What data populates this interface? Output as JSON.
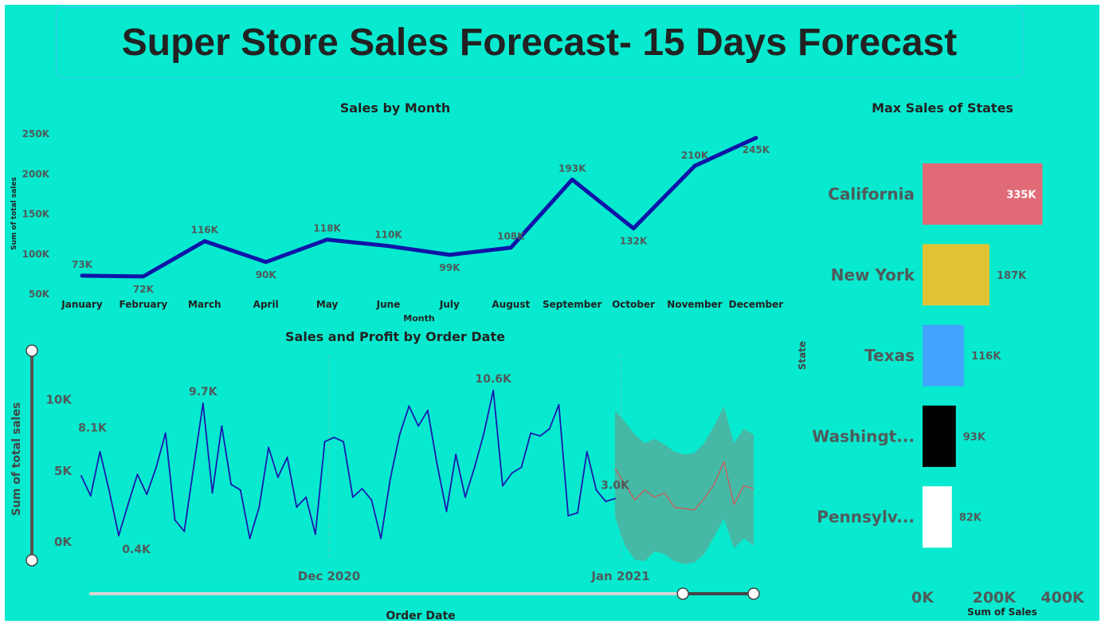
{
  "dashboard_title": "Super Store Sales Forecast- 15 Days Forecast",
  "colors": {
    "background": "#07eacf",
    "line_primary": "#0f14a8",
    "line_daily": "#1a1ab0",
    "forecast_line": "#d9534f",
    "forecast_band": "#45b9a6",
    "label_text": "#505a5a",
    "title_text": "#222222"
  },
  "chart_data": [
    {
      "id": "sales-by-month",
      "type": "line",
      "title": "Sales by Month",
      "xlabel": "Month",
      "ylabel": "Sum of total sales",
      "categories": [
        "January",
        "February",
        "March",
        "April",
        "May",
        "June",
        "July",
        "August",
        "September",
        "October",
        "November",
        "December"
      ],
      "values": [
        73,
        72,
        116,
        90,
        118,
        110,
        99,
        108,
        193,
        132,
        210,
        245
      ],
      "value_labels": [
        "73K",
        "72K",
        "116K",
        "90K",
        "118K",
        "110K",
        "99K",
        "108K",
        "193K",
        "132K",
        "210K",
        "245K"
      ],
      "yticks": [
        50,
        100,
        150,
        200,
        250
      ],
      "ytick_labels": [
        "50K",
        "100K",
        "150K",
        "200K",
        "250K"
      ],
      "ylim": [
        50,
        250
      ],
      "grid": false
    },
    {
      "id": "sales-profit-by-date",
      "type": "line",
      "title": "Sales and Profit by Order Date",
      "xlabel": "Order Date",
      "ylabel": "Sum of total sales",
      "x_tick_labels": [
        "Dec 2020",
        "Jan 2021"
      ],
      "ytick_labels": [
        "0K",
        "5K",
        "10K"
      ],
      "yticks": [
        0,
        5,
        10
      ],
      "ylim": [
        -1.5,
        12.5
      ],
      "values": [
        4.6,
        3.2,
        6.3,
        3.5,
        0.4,
        2.6,
        4.7,
        3.3,
        5.2,
        7.6,
        1.5,
        0.7,
        5.2,
        9.7,
        3.4,
        8.1,
        4.0,
        3.6,
        0.2,
        2.4,
        6.6,
        4.5,
        5.9,
        2.4,
        3.1,
        0.5,
        7.0,
        7.3,
        7.0,
        3.1,
        3.7,
        2.9,
        0.2,
        4.4,
        7.5,
        9.5,
        8.1,
        9.2,
        5.4,
        2.1,
        6.1,
        3.1,
        5.2,
        7.6,
        10.6,
        3.9,
        4.8,
        5.2,
        7.6,
        7.4,
        7.9,
        9.6,
        1.8,
        2.0,
        6.3,
        3.6,
        2.8,
        3.0
      ],
      "value_labels": [
        {
          "index": 4,
          "text": "0.4K"
        },
        {
          "index": 13,
          "text": "9.7K"
        },
        {
          "index": 44,
          "text": "10.6K"
        },
        {
          "index": 57,
          "text": "3.0K"
        }
      ],
      "extra_labels": [
        {
          "text": "8.1K",
          "value": 8.1
        }
      ],
      "forecast": {
        "values": [
          5.1,
          4.0,
          2.9,
          3.6,
          3.1,
          3.4,
          2.4,
          2.3,
          2.2,
          3.0,
          4.0,
          5.6,
          2.6,
          3.9,
          3.7
        ],
        "upper": [
          9.2,
          8.4,
          7.5,
          6.9,
          7.2,
          6.8,
          6.3,
          6.1,
          6.2,
          6.9,
          8.1,
          9.5,
          6.9,
          7.9,
          7.5
        ],
        "lower": [
          1.7,
          -0.3,
          -1.3,
          -1.4,
          -0.7,
          -0.9,
          -1.4,
          -1.6,
          -1.5,
          -0.9,
          0.3,
          1.6,
          -0.5,
          0.2,
          -0.3
        ]
      },
      "slider": {
        "range": [
          0.88,
          1.0
        ]
      }
    },
    {
      "id": "max-sales-states",
      "type": "bar",
      "orientation": "horizontal",
      "title": "Max Sales of States",
      "xlabel": "Sum of Sales",
      "ylabel": "State",
      "categories": [
        "California",
        "New York",
        "Texas",
        "Washingt...",
        "Pennsylv..."
      ],
      "values": [
        335,
        187,
        116,
        93,
        82
      ],
      "value_labels": [
        "335K",
        "187K",
        "116K",
        "93K",
        "82K"
      ],
      "bar_colors": [
        "#e06b76",
        "#e0c335",
        "#41a4ff",
        "#000000",
        "#ffffff"
      ],
      "xticks": [
        0,
        200,
        400
      ],
      "xtick_labels": [
        "0K",
        "200K",
        "400K"
      ],
      "xlim": [
        0,
        400
      ]
    }
  ]
}
